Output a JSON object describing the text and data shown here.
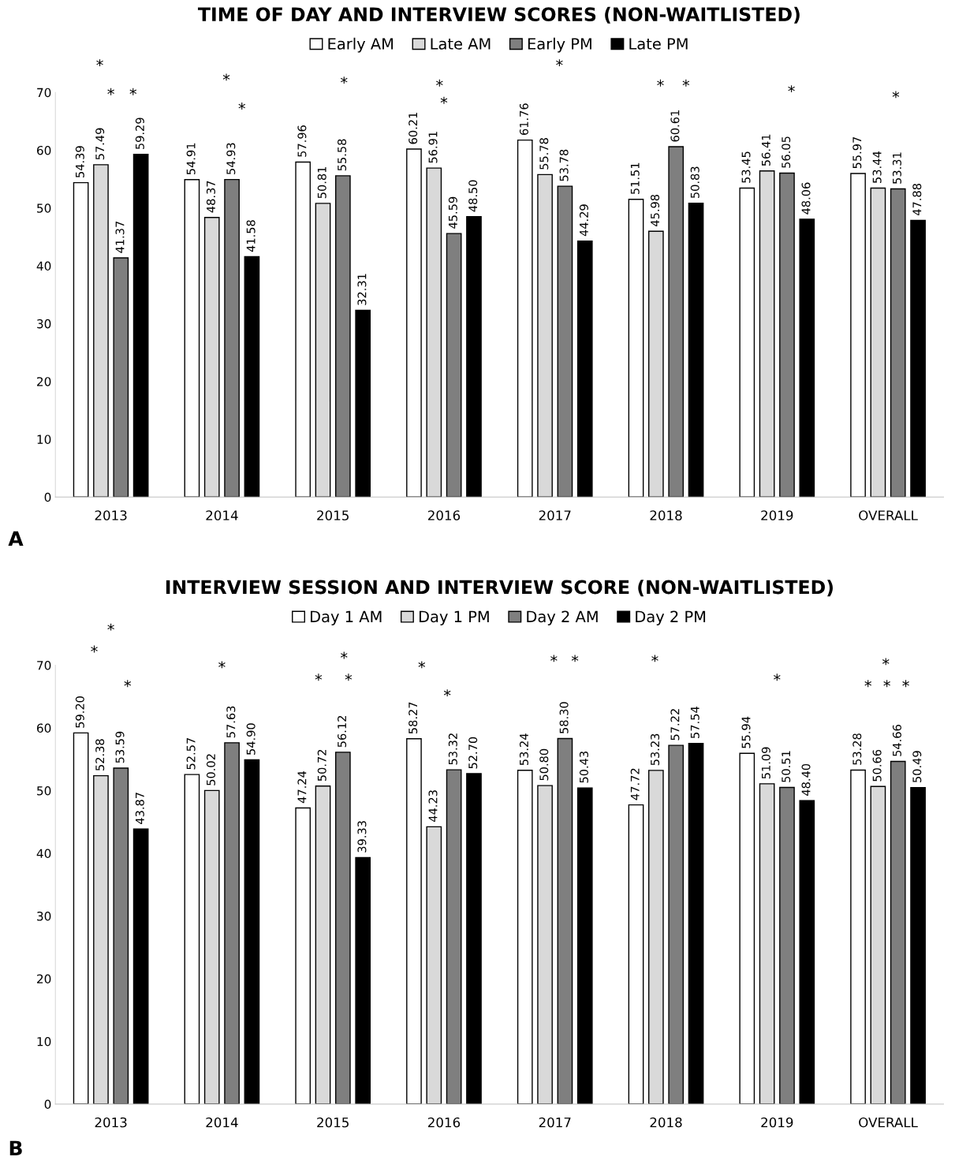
{
  "chart_data": [
    {
      "type": "bar",
      "title": "TIME OF DAY AND INTERVIEW SCORES (NON-WAITLISTED)",
      "categories": [
        "2013",
        "2014",
        "2015",
        "2016",
        "2017",
        "2018",
        "2019",
        "OVERALL"
      ],
      "series": [
        {
          "name": "Early AM",
          "color": "#ffffff",
          "values": [
            54.39,
            54.91,
            57.96,
            60.21,
            61.76,
            51.51,
            53.45,
            55.97
          ],
          "value_labels": [
            "54.39",
            "54.91",
            "57.96",
            "60.21",
            "61.76",
            "51.51",
            "53.45",
            "55.97"
          ]
        },
        {
          "name": "Late AM",
          "color": "#d9d9d9",
          "values": [
            57.49,
            48.37,
            50.81,
            56.91,
            55.78,
            45.98,
            56.41,
            53.44
          ],
          "value_labels": [
            "57.49",
            "48.37",
            "50.81",
            "56.91",
            "55.78",
            "45.98",
            "56.41",
            "53.44"
          ]
        },
        {
          "name": "Early PM",
          "color": "#7f7f7f",
          "values": [
            41.37,
            54.93,
            55.58,
            45.59,
            53.78,
            60.61,
            56.05,
            53.31
          ],
          "value_labels": [
            "41.37",
            "54.93",
            "55.58",
            "45.59",
            "53.78",
            "60.61",
            "56.05",
            "53.31"
          ]
        },
        {
          "name": "Late PM",
          "color": "#000000",
          "values": [
            59.29,
            41.58,
            32.31,
            48.5,
            44.29,
            50.83,
            48.06,
            47.88
          ],
          "value_labels": [
            "59.29",
            "41.58",
            "32.31",
            "48.50",
            "44.29",
            "50.83",
            "48.06",
            "47.88"
          ]
        }
      ],
      "ylim": [
        0,
        70
      ],
      "yticks": [
        0,
        10,
        20,
        30,
        40,
        50,
        60,
        70
      ],
      "grid": false,
      "legend": "top",
      "annotations": [
        "*",
        "*",
        "*",
        "*",
        "*",
        "*",
        "*",
        "*",
        "*",
        "*",
        "*",
        "*",
        "*",
        "A"
      ]
    },
    {
      "type": "bar",
      "title": "INTERVIEW SESSION AND INTERVIEW SCORE (NON-WAITLISTED)",
      "categories": [
        "2013",
        "2014",
        "2015",
        "2016",
        "2017",
        "2018",
        "2019",
        "OVERALL"
      ],
      "series": [
        {
          "name": "Day 1 AM",
          "color": "#ffffff",
          "values": [
            59.2,
            52.57,
            47.24,
            58.27,
            53.24,
            47.72,
            55.94,
            53.28
          ],
          "value_labels": [
            "59.20",
            "52.57",
            "47.24",
            "58.27",
            "53.24",
            "47.72",
            "55.94",
            "53.28"
          ]
        },
        {
          "name": "Day 1 PM",
          "color": "#d9d9d9",
          "values": [
            52.38,
            50.02,
            50.72,
            44.23,
            50.8,
            53.23,
            51.09,
            50.66
          ],
          "value_labels": [
            "52.38",
            "50.02",
            "50.72",
            "44.23",
            "50.80",
            "53.23",
            "51.09",
            "50.66"
          ]
        },
        {
          "name": "Day 2 AM",
          "color": "#7f7f7f",
          "values": [
            53.59,
            57.63,
            56.12,
            53.32,
            58.3,
            57.22,
            50.51,
            54.66
          ],
          "value_labels": [
            "53.59",
            "57.63",
            "56.12",
            "53.32",
            "58.30",
            "57.22",
            "50.51",
            "54.66"
          ]
        },
        {
          "name": "Day 2 PM",
          "color": "#000000",
          "values": [
            43.87,
            54.9,
            39.33,
            52.7,
            50.43,
            57.54,
            48.4,
            50.49
          ],
          "value_labels": [
            "43.87",
            "54.90",
            "39.33",
            "52.70",
            "50.43",
            "57.54",
            "48.40",
            "50.49"
          ]
        }
      ],
      "ylim": [
        0,
        70
      ],
      "yticks": [
        0,
        10,
        20,
        30,
        40,
        50,
        60,
        70
      ],
      "grid": false,
      "legend": "top",
      "annotations": [
        "*",
        "*",
        "*",
        "*",
        "*",
        "*",
        "*",
        "*",
        "*",
        "*",
        "*",
        "*",
        "*",
        "*",
        "*",
        "*",
        "*",
        "B"
      ]
    }
  ]
}
